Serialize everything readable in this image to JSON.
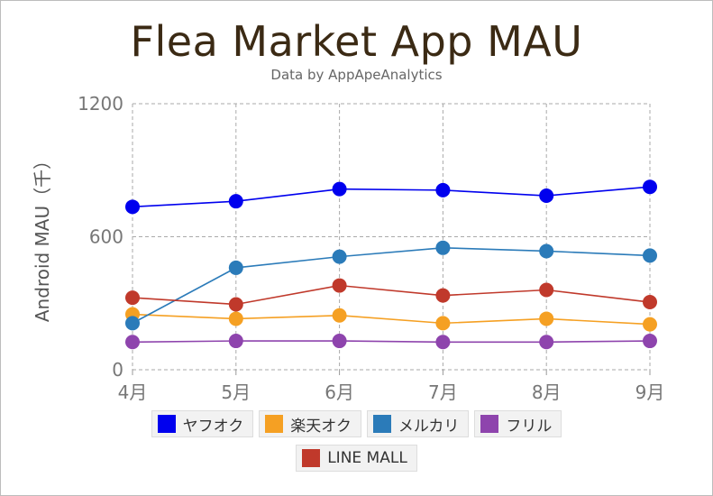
{
  "chart_data": {
    "type": "line",
    "title": "Flea Market App MAU",
    "subtitle": "Data by AppApeAnalytics",
    "xlabel": "",
    "ylabel": "Android MAU（千）",
    "categories": [
      "4月",
      "5月",
      "6月",
      "7月",
      "8月",
      "9月"
    ],
    "ylim": [
      0,
      1200
    ],
    "yticks": [
      0,
      600,
      1200
    ],
    "grid": true,
    "legend_position": "bottom",
    "series": [
      {
        "name": "ヤフオク",
        "color": "#0000ee",
        "values": [
          735,
          760,
          815,
          810,
          785,
          825
        ]
      },
      {
        "name": "楽天オク",
        "color": "#f5a023",
        "values": [
          250,
          230,
          245,
          210,
          230,
          205
        ]
      },
      {
        "name": "メルカリ",
        "color": "#2b7bb9",
        "values": [
          210,
          460,
          510,
          550,
          535,
          515
        ]
      },
      {
        "name": "フリル",
        "color": "#8e44ad",
        "values": [
          125,
          130,
          130,
          125,
          125,
          130
        ]
      },
      {
        "name": "LINE MALL",
        "color": "#c0392b",
        "values": [
          325,
          295,
          380,
          335,
          360,
          305
        ]
      }
    ]
  }
}
